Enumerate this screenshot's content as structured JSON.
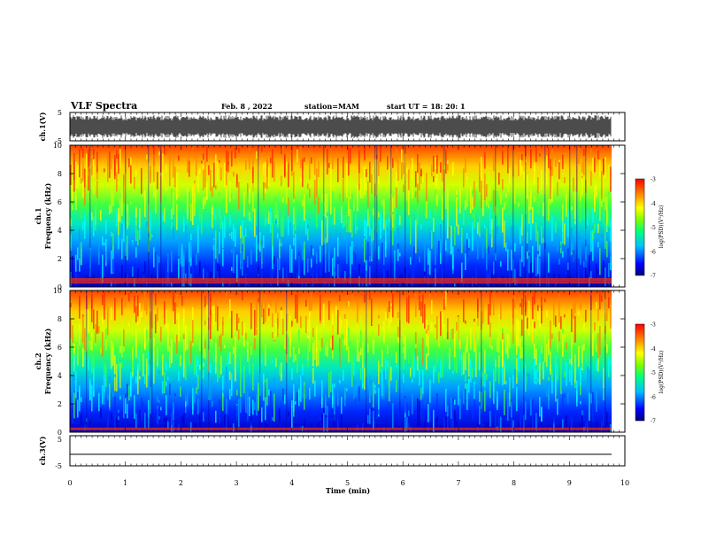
{
  "header": {
    "title": "VLF Spectra",
    "date": "Feb. 8 , 2022",
    "station": "station=MAM",
    "start": "start UT = 18: 20: 1"
  },
  "colors": {
    "colormap": [
      "#000080",
      "#0000ff",
      "#00bfff",
      "#00ff80",
      "#80ff00",
      "#ffff00",
      "#ff8000",
      "#ff0000"
    ]
  },
  "chart_data": [
    {
      "type": "line",
      "ylabel": "ch.1(V)",
      "ylim": [
        -5,
        5
      ],
      "yticks": [
        "5",
        "-5"
      ],
      "description": "dense noisy waveform spanning roughly -4 to 4 V"
    },
    {
      "type": "heatmap",
      "ylabel_1": "ch.1",
      "ylabel_2": "Frequency (kHz)",
      "ylim": [
        0,
        10
      ],
      "yticks": [
        "0",
        "2",
        "4",
        "6",
        "8",
        "10"
      ],
      "colorbar": {
        "label": "log(PSD)(V²/Hz)",
        "range": [
          -7,
          -3
        ],
        "ticks": [
          "-3",
          "-4",
          "-5",
          "-6",
          "-7"
        ]
      }
    },
    {
      "type": "heatmap",
      "ylabel_1": "ch.2",
      "ylabel_2": "Frequency (kHz)",
      "ylim": [
        0,
        10
      ],
      "yticks": [
        "0",
        "2",
        "4",
        "6",
        "8",
        "10"
      ],
      "colorbar": {
        "label": "log(PSD)(V²/Hz)",
        "range": [
          -7,
          -3
        ],
        "ticks": [
          "-3",
          "-4",
          "-5",
          "-6",
          "-7"
        ]
      }
    },
    {
      "type": "line",
      "ylabel": "ch.3(V)",
      "ylim": [
        -5,
        5
      ],
      "yticks": [
        "5",
        "-5"
      ],
      "description": "flat line near -2 V"
    },
    {
      "type": "axis",
      "xlabel": "Time (min)",
      "xlim": [
        0,
        10
      ],
      "xticks": [
        "0",
        "1",
        "2",
        "3",
        "4",
        "5",
        "6",
        "7",
        "8",
        "9",
        "10"
      ]
    }
  ]
}
